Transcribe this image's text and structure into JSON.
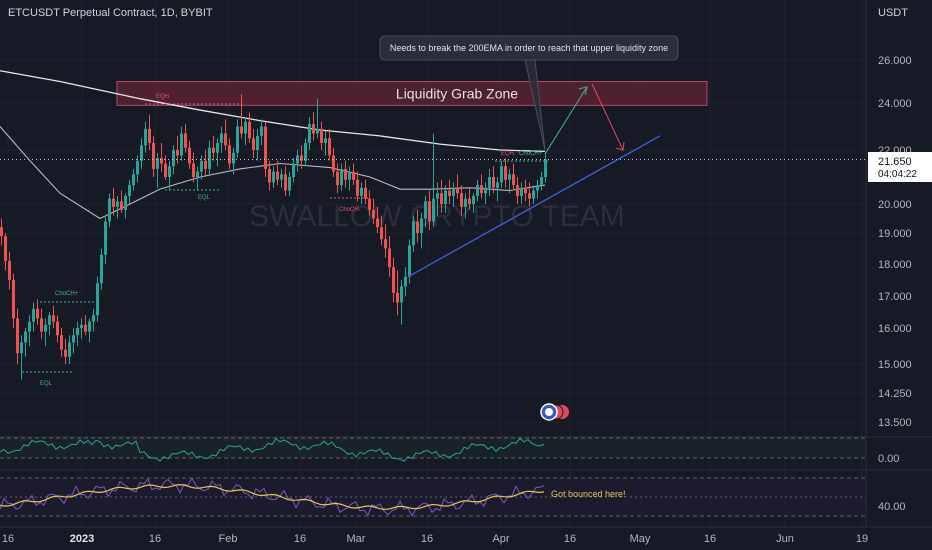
{
  "header": {
    "title": "ETCUSDT Perpetual Contract, 1D, BYBIT",
    "currency": "USDT"
  },
  "watermark": "SWALLOW CRYPTO TEAM",
  "price_badge": {
    "price": "21.650",
    "countdown": "04:04:22"
  },
  "annotations": {
    "callout": "Needs to break the 200EMA in order to reach that upper liquidity zone",
    "zone_label": "Liquidity Grab Zone",
    "bounce_note": "Got bounced here!",
    "eqh_1": "EQH",
    "eqh_2": "EQH",
    "eql_1": "EQL",
    "eql_2": "EQL",
    "choch_1": "ChoCH+",
    "choch_2": "ChoCH-",
    "choch_3": "ChoCH+"
  },
  "chart_data": {
    "type": "candlestick",
    "title": "ETCUSDT Perpetual Contract, 1D, BYBIT",
    "y_unit": "USDT",
    "price_ticks": [
      "26.000",
      "24.000",
      "22.000",
      "20.000",
      "19.000",
      "18.000",
      "17.000",
      "16.000",
      "15.000",
      "14.250",
      "13.500"
    ],
    "x_ticks": [
      "16",
      "2023",
      "16",
      "Feb",
      "16",
      "Mar",
      "16",
      "Apr",
      "16",
      "May",
      "16",
      "Jun",
      "19"
    ],
    "current_price": 21.65,
    "liquidity_zone": {
      "low": 23.9,
      "high": 25.0
    },
    "ema200": [
      [
        0,
        25.5
      ],
      [
        60,
        25.0
      ],
      [
        100,
        24.6
      ],
      [
        140,
        24.2
      ],
      [
        200,
        23.7
      ],
      [
        260,
        23.25
      ],
      [
        320,
        22.85
      ],
      [
        380,
        22.6
      ],
      [
        440,
        22.25
      ],
      [
        500,
        22.0
      ],
      [
        545,
        21.95
      ]
    ],
    "ema50": [
      [
        0,
        23.0
      ],
      [
        30,
        21.6
      ],
      [
        60,
        20.4
      ],
      [
        100,
        19.5
      ],
      [
        130,
        20.0
      ],
      [
        160,
        20.55
      ],
      [
        200,
        21.0
      ],
      [
        240,
        21.3
      ],
      [
        280,
        21.5
      ],
      [
        330,
        21.35
      ],
      [
        370,
        21.0
      ],
      [
        400,
        20.55
      ],
      [
        430,
        20.55
      ],
      [
        470,
        20.6
      ],
      [
        510,
        20.5
      ],
      [
        545,
        20.7
      ]
    ],
    "trendline": [
      [
        408,
        17.6
      ],
      [
        660,
        22.6
      ]
    ],
    "projection": [
      [
        545,
        21.85
      ],
      [
        587,
        24.75
      ],
      [
        623,
        22.0
      ]
    ],
    "candles": [
      [
        0,
        19.2,
        19.5,
        18.6,
        18.9
      ],
      [
        4,
        18.9,
        19.0,
        17.8,
        18.1
      ],
      [
        8,
        18.1,
        18.4,
        17.2,
        17.5
      ],
      [
        12,
        17.5,
        17.7,
        16.0,
        16.3
      ],
      [
        16,
        16.3,
        16.6,
        15.0,
        15.3
      ],
      [
        20,
        15.3,
        15.8,
        14.6,
        15.6
      ],
      [
        24,
        15.6,
        16.0,
        15.2,
        15.9
      ],
      [
        28,
        15.9,
        16.4,
        15.5,
        16.2
      ],
      [
        32,
        16.2,
        16.8,
        15.9,
        16.6
      ],
      [
        36,
        16.6,
        16.9,
        16.1,
        16.3
      ],
      [
        40,
        16.3,
        16.6,
        15.7,
        15.9
      ],
      [
        44,
        15.9,
        16.3,
        15.5,
        16.1
      ],
      [
        48,
        16.1,
        16.5,
        15.8,
        16.4
      ],
      [
        52,
        16.4,
        16.7,
        16.0,
        16.2
      ],
      [
        56,
        16.2,
        16.4,
        15.6,
        15.8
      ],
      [
        60,
        15.8,
        16.0,
        15.2,
        15.4
      ],
      [
        64,
        15.4,
        15.7,
        15.0,
        15.2
      ],
      [
        68,
        15.2,
        15.8,
        15.0,
        15.6
      ],
      [
        72,
        15.6,
        16.0,
        15.3,
        15.8
      ],
      [
        76,
        15.8,
        16.2,
        15.5,
        16.0
      ],
      [
        80,
        16.0,
        16.3,
        15.7,
        16.1
      ],
      [
        84,
        16.1,
        16.4,
        15.8,
        15.9
      ],
      [
        88,
        15.9,
        16.3,
        15.6,
        16.2
      ],
      [
        92,
        16.2,
        16.6,
        15.9,
        16.4
      ],
      [
        96,
        16.4,
        17.6,
        16.2,
        17.4
      ],
      [
        100,
        17.4,
        18.5,
        17.2,
        18.3
      ],
      [
        104,
        18.3,
        19.6,
        18.0,
        19.4
      ],
      [
        108,
        19.4,
        20.4,
        19.2,
        20.2
      ],
      [
        112,
        20.2,
        20.6,
        19.6,
        19.9
      ],
      [
        116,
        19.9,
        20.3,
        19.5,
        20.1
      ],
      [
        120,
        20.1,
        20.5,
        19.7,
        19.8
      ],
      [
        124,
        19.8,
        20.4,
        19.5,
        20.3
      ],
      [
        128,
        20.3,
        20.9,
        20.0,
        20.7
      ],
      [
        132,
        20.7,
        21.3,
        20.5,
        21.1
      ],
      [
        136,
        21.1,
        21.8,
        20.8,
        21.6
      ],
      [
        140,
        21.6,
        22.5,
        21.3,
        22.2
      ],
      [
        144,
        22.2,
        23.2,
        21.9,
        22.9
      ],
      [
        148,
        22.9,
        23.5,
        22.0,
        22.3
      ],
      [
        152,
        22.3,
        22.6,
        21.0,
        21.3
      ],
      [
        156,
        21.3,
        21.9,
        20.6,
        21.7
      ],
      [
        160,
        21.7,
        22.3,
        21.2,
        21.5
      ],
      [
        164,
        21.5,
        21.8,
        20.9,
        21.0
      ],
      [
        168,
        21.0,
        21.6,
        20.5,
        21.4
      ],
      [
        172,
        21.4,
        22.2,
        21.1,
        22.0
      ],
      [
        176,
        22.0,
        22.6,
        21.5,
        21.8
      ],
      [
        180,
        21.8,
        23.0,
        21.6,
        22.7
      ],
      [
        184,
        22.7,
        23.1,
        21.9,
        22.1
      ],
      [
        188,
        22.1,
        22.4,
        21.3,
        21.5
      ],
      [
        192,
        21.5,
        21.9,
        20.8,
        21.0
      ],
      [
        196,
        21.0,
        21.4,
        20.5,
        21.2
      ],
      [
        200,
        21.2,
        21.8,
        20.9,
        21.6
      ],
      [
        204,
        21.6,
        22.0,
        21.0,
        21.3
      ],
      [
        208,
        21.3,
        22.4,
        21.1,
        22.1
      ],
      [
        212,
        22.1,
        22.6,
        21.6,
        21.9
      ],
      [
        216,
        21.9,
        22.5,
        21.4,
        22.3
      ],
      [
        220,
        22.3,
        23.0,
        21.9,
        22.7
      ],
      [
        224,
        22.7,
        23.3,
        22.0,
        22.2
      ],
      [
        228,
        22.2,
        22.5,
        21.3,
        21.5
      ],
      [
        232,
        21.5,
        22.1,
        21.1,
        21.9
      ],
      [
        236,
        21.9,
        23.3,
        21.7,
        23.0
      ],
      [
        240,
        23.0,
        24.4,
        22.5,
        22.7
      ],
      [
        244,
        22.7,
        23.4,
        22.2,
        23.2
      ],
      [
        248,
        23.2,
        23.6,
        22.3,
        22.5
      ],
      [
        252,
        22.5,
        22.9,
        21.7,
        22.0
      ],
      [
        256,
        22.0,
        22.9,
        21.6,
        22.6
      ],
      [
        260,
        22.6,
        23.3,
        22.2,
        23.0
      ],
      [
        264,
        23.0,
        23.2,
        21.0,
        21.3
      ],
      [
        268,
        21.3,
        21.6,
        20.5,
        20.8
      ],
      [
        272,
        20.8,
        21.4,
        20.6,
        21.2
      ],
      [
        276,
        21.2,
        21.6,
        20.7,
        20.9
      ],
      [
        280,
        20.9,
        21.3,
        20.6,
        21.1
      ],
      [
        284,
        21.1,
        21.4,
        20.3,
        20.5
      ],
      [
        288,
        20.5,
        21.2,
        20.3,
        21.0
      ],
      [
        292,
        21.0,
        21.7,
        20.8,
        21.5
      ],
      [
        296,
        21.5,
        22.0,
        21.2,
        21.8
      ],
      [
        300,
        21.8,
        22.2,
        21.3,
        21.6
      ],
      [
        304,
        21.6,
        22.5,
        21.4,
        22.3
      ],
      [
        308,
        22.3,
        23.4,
        22.0,
        23.1
      ],
      [
        312,
        23.1,
        23.6,
        22.4,
        22.7
      ],
      [
        316,
        22.7,
        24.2,
        22.5,
        22.9
      ],
      [
        320,
        22.9,
        23.2,
        22.0,
        22.3
      ],
      [
        324,
        22.3,
        22.8,
        21.8,
        22.5
      ],
      [
        328,
        22.5,
        22.9,
        21.6,
        21.8
      ],
      [
        332,
        21.8,
        22.1,
        21.0,
        21.2
      ],
      [
        336,
        21.2,
        21.5,
        20.4,
        20.7
      ],
      [
        340,
        20.7,
        21.5,
        20.5,
        21.3
      ],
      [
        344,
        21.3,
        21.6,
        20.6,
        20.9
      ],
      [
        348,
        20.9,
        21.4,
        20.5,
        21.2
      ],
      [
        352,
        21.2,
        21.5,
        20.7,
        20.9
      ],
      [
        356,
        20.9,
        21.2,
        20.1,
        20.3
      ],
      [
        360,
        20.3,
        20.8,
        20.0,
        20.6
      ],
      [
        364,
        20.6,
        20.9,
        20.0,
        20.2
      ],
      [
        368,
        20.2,
        20.5,
        19.6,
        19.8
      ],
      [
        372,
        19.8,
        20.2,
        19.3,
        19.5
      ],
      [
        376,
        19.5,
        19.9,
        19.0,
        19.2
      ],
      [
        380,
        19.2,
        19.6,
        18.6,
        18.8
      ],
      [
        384,
        18.8,
        19.3,
        18.2,
        18.5
      ],
      [
        388,
        18.5,
        18.9,
        17.6,
        17.9
      ],
      [
        392,
        17.9,
        18.2,
        16.8,
        17.1
      ],
      [
        396,
        17.1,
        17.8,
        16.4,
        16.8
      ],
      [
        400,
        16.8,
        17.5,
        16.1,
        17.3
      ],
      [
        404,
        17.3,
        17.9,
        17.0,
        17.6
      ],
      [
        408,
        17.6,
        18.8,
        17.4,
        18.6
      ],
      [
        412,
        18.6,
        19.6,
        18.4,
        19.4
      ],
      [
        416,
        19.4,
        19.8,
        18.7,
        19.0
      ],
      [
        420,
        19.0,
        19.7,
        18.5,
        19.5
      ],
      [
        424,
        19.5,
        20.3,
        19.2,
        20.1
      ],
      [
        428,
        20.1,
        20.5,
        19.1,
        19.4
      ],
      [
        432,
        19.4,
        22.7,
        19.2,
        20.2
      ],
      [
        436,
        20.2,
        20.8,
        19.6,
        20.4
      ],
      [
        440,
        20.4,
        20.9,
        19.7,
        20.0
      ],
      [
        444,
        20.0,
        20.7,
        19.7,
        20.5
      ],
      [
        448,
        20.5,
        20.9,
        20.0,
        20.3
      ],
      [
        452,
        20.3,
        20.8,
        19.9,
        20.6
      ],
      [
        456,
        20.6,
        21.1,
        20.2,
        20.4
      ],
      [
        460,
        20.4,
        20.7,
        19.6,
        19.9
      ],
      [
        464,
        19.9,
        20.4,
        19.5,
        20.2
      ],
      [
        468,
        20.2,
        20.6,
        19.8,
        20.0
      ],
      [
        472,
        20.0,
        20.4,
        19.7,
        20.3
      ],
      [
        476,
        20.3,
        20.9,
        20.1,
        20.7
      ],
      [
        480,
        20.7,
        21.1,
        20.2,
        20.4
      ],
      [
        484,
        20.4,
        20.8,
        20.0,
        20.6
      ],
      [
        488,
        20.6,
        21.3,
        20.3,
        21.0
      ],
      [
        492,
        21.0,
        21.4,
        20.4,
        20.6
      ],
      [
        496,
        20.6,
        21.0,
        20.1,
        20.8
      ],
      [
        500,
        20.8,
        21.6,
        20.6,
        21.4
      ],
      [
        504,
        21.4,
        21.7,
        20.6,
        20.9
      ],
      [
        508,
        20.9,
        21.3,
        20.4,
        21.1
      ],
      [
        512,
        21.1,
        21.5,
        20.5,
        20.7
      ],
      [
        516,
        20.7,
        21.0,
        20.0,
        20.3
      ],
      [
        520,
        20.3,
        20.8,
        20.0,
        20.6
      ],
      [
        524,
        20.6,
        20.9,
        20.1,
        20.4
      ],
      [
        528,
        20.4,
        20.8,
        19.9,
        20.2
      ],
      [
        532,
        20.2,
        20.7,
        20.0,
        20.5
      ],
      [
        536,
        20.5,
        20.9,
        20.2,
        20.7
      ],
      [
        540,
        20.7,
        21.2,
        20.5,
        21.0
      ],
      [
        544,
        21.0,
        21.9,
        20.8,
        21.65
      ]
    ],
    "rsi": {
      "levels": [
        0.0
      ],
      "visible_tick": "0.00"
    },
    "stoch": {
      "levels": [
        40.0
      ],
      "visible_tick": "40.00"
    }
  }
}
